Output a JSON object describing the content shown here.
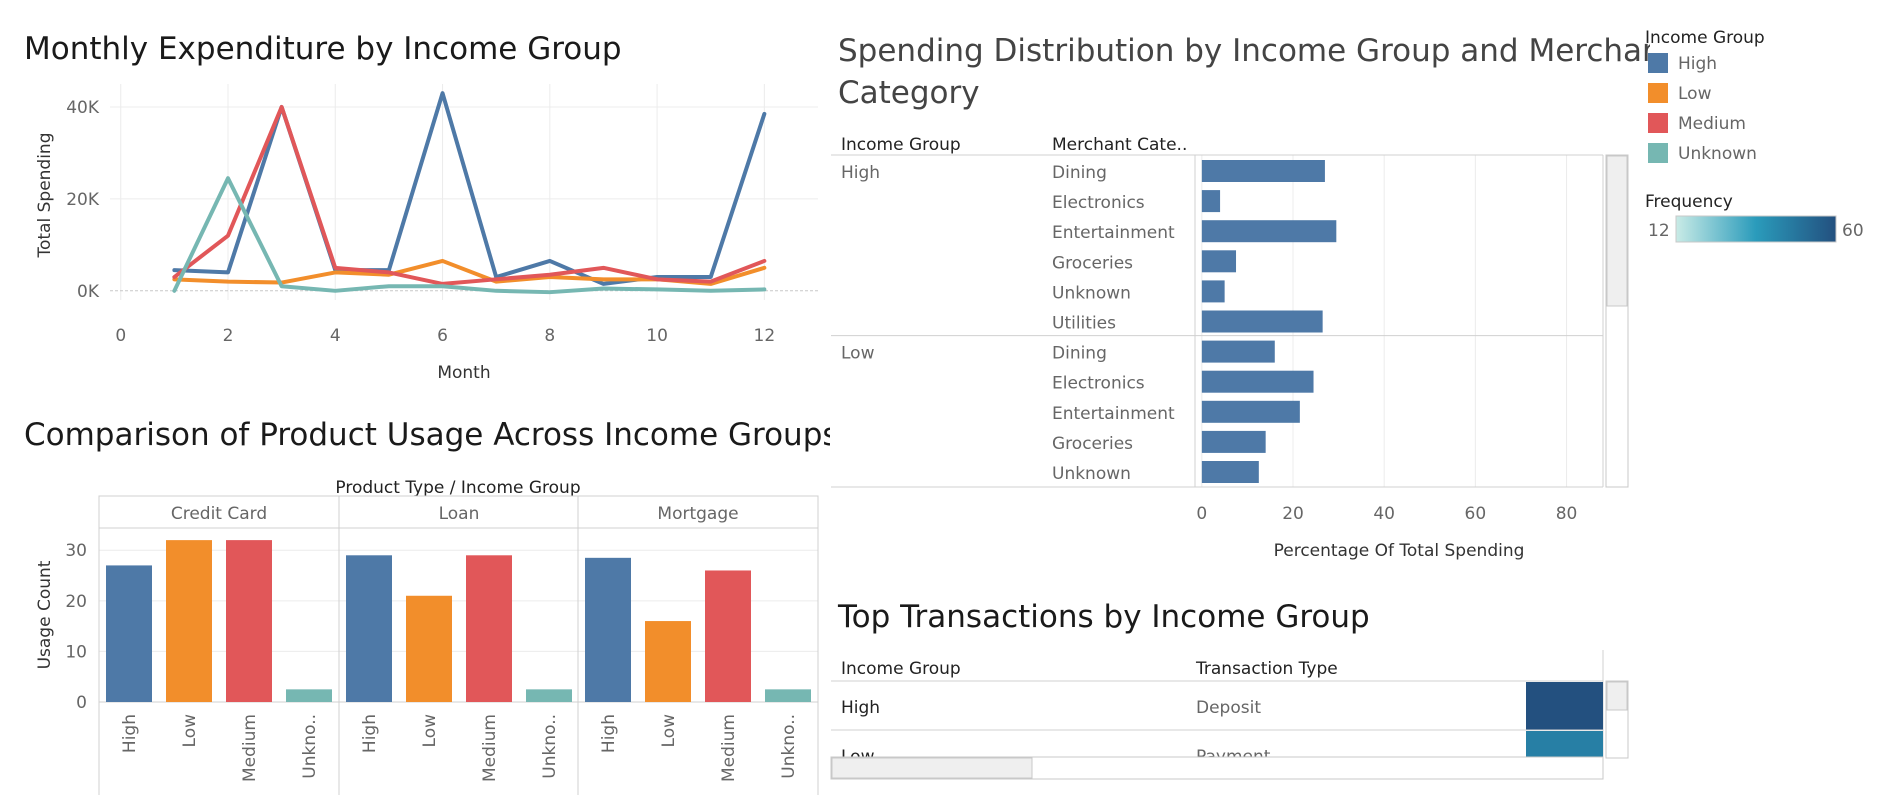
{
  "colors": {
    "High": "#4e79a7",
    "Low": "#f28e2b",
    "Medium": "#e15759",
    "Unknown": "#76b7b2",
    "grid": "#ececec",
    "axis": "#d0d0d0",
    "text": "#666666",
    "title": "#1a1a1a",
    "freq_low": "#c9ebe6",
    "freq_mid": "#2a9bbb",
    "freq_high": "#23507f"
  },
  "legend": {
    "title": "Income Group",
    "items": [
      "High",
      "Low",
      "Medium",
      "Unknown"
    ],
    "frequency_title": "Frequency",
    "frequency_min": "12",
    "frequency_max": "60"
  },
  "chart_data": [
    {
      "id": "monthly",
      "type": "line",
      "title": "Monthly Expenditure by Income Group",
      "xlabel": "Month",
      "ylabel": "Total Spending",
      "xlim": [
        -0.2,
        13
      ],
      "ylim": [
        -2000,
        45000
      ],
      "xticks": [
        0,
        2,
        4,
        6,
        8,
        10,
        12
      ],
      "yticks": [
        0,
        20000,
        40000
      ],
      "ytick_labels": [
        "0K",
        "20K",
        "40K"
      ],
      "grid": true,
      "x": [
        1,
        2,
        3,
        4,
        5,
        6,
        7,
        8,
        9,
        10,
        11,
        12
      ],
      "series": [
        {
          "name": "High",
          "values": [
            4500,
            4000,
            40000,
            4500,
            4500,
            43000,
            3000,
            6500,
            1500,
            3000,
            3000,
            38500
          ]
        },
        {
          "name": "Low",
          "values": [
            2500,
            2000,
            1800,
            4000,
            3500,
            6500,
            2000,
            3000,
            2500,
            2500,
            1500,
            5000
          ]
        },
        {
          "name": "Medium",
          "values": [
            3000,
            12000,
            40000,
            5000,
            4000,
            1500,
            2500,
            3500,
            5000,
            2500,
            2000,
            6500
          ]
        },
        {
          "name": "Unknown",
          "values": [
            0,
            24500,
            1000,
            0,
            1000,
            1000,
            0,
            -300,
            500,
            300,
            0,
            300
          ]
        }
      ]
    },
    {
      "id": "product",
      "type": "bar",
      "title": "Comparison of Product Usage Across Income Groups",
      "header": "Product Type  /  Income Group",
      "ylabel": "Usage Count",
      "ylim": [
        0,
        34
      ],
      "yticks": [
        0,
        10,
        20,
        30
      ],
      "panels": [
        "Credit Card",
        "Loan",
        "Mortgage"
      ],
      "categories": [
        "High",
        "Low",
        "Medium",
        "Unkno.."
      ],
      "series": [
        {
          "name": "Credit Card",
          "values": [
            27,
            32,
            32,
            2.5
          ]
        },
        {
          "name": "Loan",
          "values": [
            29,
            21,
            29,
            2.5
          ]
        },
        {
          "name": "Mortgage",
          "values": [
            28.5,
            16,
            26,
            2.5
          ]
        }
      ]
    },
    {
      "id": "distribution",
      "type": "bar",
      "orientation": "horizontal",
      "title": "Spending Distribution by Income Group and Merchant Category",
      "col_header_group": "Income Group",
      "col_header_category": "Merchant Cate..",
      "xlabel": "Percentage Of Total Spending",
      "xlim": [
        -1.5,
        88
      ],
      "xticks": [
        0,
        20,
        40,
        60,
        80
      ],
      "groups": [
        {
          "name": "High",
          "rows": [
            {
              "category": "Dining",
              "value": 27
            },
            {
              "category": "Electronics",
              "value": 4
            },
            {
              "category": "Entertainment",
              "value": 29.5
            },
            {
              "category": "Groceries",
              "value": 7.5
            },
            {
              "category": "Unknown",
              "value": 5
            },
            {
              "category": "Utilities",
              "value": 26.5
            }
          ]
        },
        {
          "name": "Low",
          "rows": [
            {
              "category": "Dining",
              "value": 16
            },
            {
              "category": "Electronics",
              "value": 24.5
            },
            {
              "category": "Entertainment",
              "value": 21.5
            },
            {
              "category": "Groceries",
              "value": 14
            },
            {
              "category": "Unknown",
              "value": 12.5
            }
          ]
        }
      ]
    },
    {
      "id": "top",
      "type": "table",
      "title": "Top Transactions by Income Group",
      "columns": [
        "Income Group",
        "Transaction Type"
      ],
      "rows": [
        {
          "group": "High",
          "type": "Deposit",
          "frequency": 60
        },
        {
          "group": "Low",
          "type": "Payment",
          "frequency": 45
        }
      ],
      "frequency_range": [
        12,
        60
      ]
    }
  ]
}
